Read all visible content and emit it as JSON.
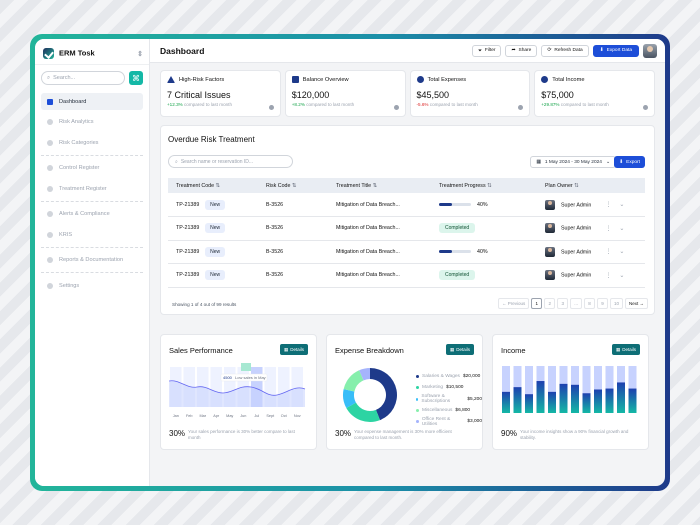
{
  "sidebar": {
    "org": "ERM Tosk",
    "search_placeholder": "Search...",
    "items": [
      {
        "label": "Dashboard",
        "active": true
      },
      {
        "label": "Risk Analytics"
      },
      {
        "label": "Risk Categories"
      },
      {
        "label": "Control Register"
      },
      {
        "label": "Treatment Register"
      },
      {
        "label": "Alerts & Compliance"
      },
      {
        "label": "KRIS"
      },
      {
        "label": "Reports & Documentation"
      },
      {
        "label": "Settings"
      }
    ]
  },
  "header": {
    "title": "Dashboard",
    "filter": "Filter",
    "share": "Share",
    "refresh": "Refresh Data",
    "export": "Export Data"
  },
  "stats": [
    {
      "label": "High-Risk Factors",
      "value": "7 Critical Issues",
      "delta": "+12.3%",
      "note": "compared to last month",
      "trend": "up",
      "icon": "warning-icon"
    },
    {
      "label": "Balance Overview",
      "value": "$120,000",
      "delta": "+8.2%",
      "note": "compared to last month",
      "trend": "up",
      "icon": "bar-chart-icon"
    },
    {
      "label": "Total Expenses",
      "value": "$45,500",
      "delta": "-5.6%",
      "note": "compared to last month",
      "trend": "down",
      "icon": "dollar-icon"
    },
    {
      "label": "Total Income",
      "value": "$75,000",
      "delta": "+29.87%",
      "note": "compared to last month",
      "trend": "up",
      "icon": "dollar-icon"
    }
  ],
  "overdue": {
    "title": "Overdue Risk Treatment",
    "search_placeholder": "Search name or reservation ID...",
    "date_range": "1 May 2024 - 30 May 2024",
    "export": "Export",
    "columns": [
      "Treatment Code",
      "Risk Code",
      "Treatment Title",
      "Treatment Progress",
      "Plan Owner"
    ],
    "rows": [
      {
        "code": "TP-21389",
        "status": "New",
        "risk": "B-3526",
        "title": "Mitigation of Data Breach...",
        "progress": "40%",
        "progress_value": 40,
        "owner": "Super Admin"
      },
      {
        "code": "TP-21389",
        "status": "New",
        "risk": "B-3526",
        "title": "Mitigation of Data Breach...",
        "progress": "Completed",
        "progress_value": null,
        "owner": "Super Admin"
      },
      {
        "code": "TP-21389",
        "status": "New",
        "risk": "B-3526",
        "title": "Mitigation of Data Breach...",
        "progress": "40%",
        "progress_value": 40,
        "owner": "Super Admin"
      },
      {
        "code": "TP-21389",
        "status": "New",
        "risk": "B-3526",
        "title": "Mitigation of Data Breach...",
        "progress": "Completed",
        "progress_value": null,
        "owner": "Super Admin"
      }
    ],
    "footer": "Showing 1 of 4 out of 99 results",
    "pager": {
      "prev": "Previous",
      "next": "Next",
      "pages": [
        "1",
        "2",
        "3",
        "...",
        "8",
        "9",
        "10"
      ],
      "current": "1"
    }
  },
  "sales": {
    "title": "Sales Performance",
    "details": "Details",
    "pct": "30%",
    "note": "Your sales performance is 30% better compare to last month",
    "annotation_value": "4500",
    "annotation_text": "Low sales in May",
    "months": [
      "Jan",
      "Feb",
      "Mar",
      "Apr",
      "May",
      "Jun",
      "Jul",
      "Sept",
      "Oct",
      "Nov"
    ],
    "chart_data": {
      "type": "area",
      "x": [
        "Jan",
        "Feb",
        "Mar",
        "Apr",
        "May",
        "Jun",
        "Jul",
        "Sept",
        "Oct",
        "Nov"
      ]
    }
  },
  "expense": {
    "title": "Expense Breakdown",
    "details": "Details",
    "pct": "30%",
    "note": "Your expense management is 30% more efficient compared to last month.",
    "chart_data": {
      "type": "pie",
      "labels": [
        "Salaries & Wages",
        "Marketing",
        "Software & Subscriptions",
        "Miscellaneous",
        "Office Rent & Utilities"
      ],
      "values": [
        20000,
        10500,
        5200,
        6800,
        3000
      ],
      "display": [
        "$20,000",
        "$10,500",
        "$5,200",
        "$6,800",
        "$3,000"
      ],
      "colors": [
        "#1e3a8a",
        "#2dd4a3",
        "#38bdf8",
        "#86efac",
        "#a5b4fc"
      ]
    }
  },
  "income": {
    "title": "Income",
    "details": "Details",
    "pct": "90%",
    "note": "Your income insights show a 90% financial growth and stability.",
    "chart_data": {
      "type": "bar",
      "values": [
        0.45,
        0.55,
        0.4,
        0.68,
        0.45,
        0.62,
        0.6,
        0.42,
        0.5,
        0.52,
        0.65,
        0.52
      ]
    }
  }
}
